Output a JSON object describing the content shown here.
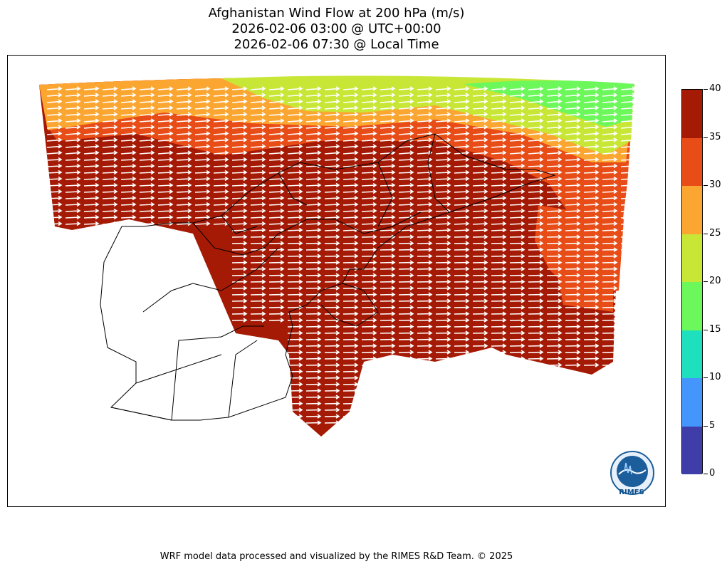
{
  "header": {
    "line1": "Afghanistan Wind Flow at 200 hPa (m/s)",
    "line2": "2026-02-06 03:00 @ UTC+00:00",
    "line3": "2026-02-06 07:30 @ Local Time"
  },
  "colorbar": {
    "ticks": [
      "40",
      "35",
      "30",
      "25",
      "20",
      "15",
      "10",
      "5",
      "0"
    ],
    "levels": [
      {
        "min": 35,
        "max": 40,
        "color": "#a51a05"
      },
      {
        "min": 30,
        "max": 35,
        "color": "#e84c17"
      },
      {
        "min": 25,
        "max": 30,
        "color": "#fca632"
      },
      {
        "min": 20,
        "max": 25,
        "color": "#c7e635"
      },
      {
        "min": 15,
        "max": 20,
        "color": "#6cf85b"
      },
      {
        "min": 10,
        "max": 15,
        "color": "#1edfbe"
      },
      {
        "min": 5,
        "max": 10,
        "color": "#4496fd"
      },
      {
        "min": 0,
        "max": 5,
        "color": "#3f3ea9"
      }
    ]
  },
  "map": {
    "vector_color": "#ffffff",
    "boundary_color": "#000000"
  },
  "logo": {
    "text": "RIMES",
    "icon": "rimes-logo-icon"
  },
  "footer": "WRF model data processed and visualized by the RIMES R&D Team. © 2025"
}
